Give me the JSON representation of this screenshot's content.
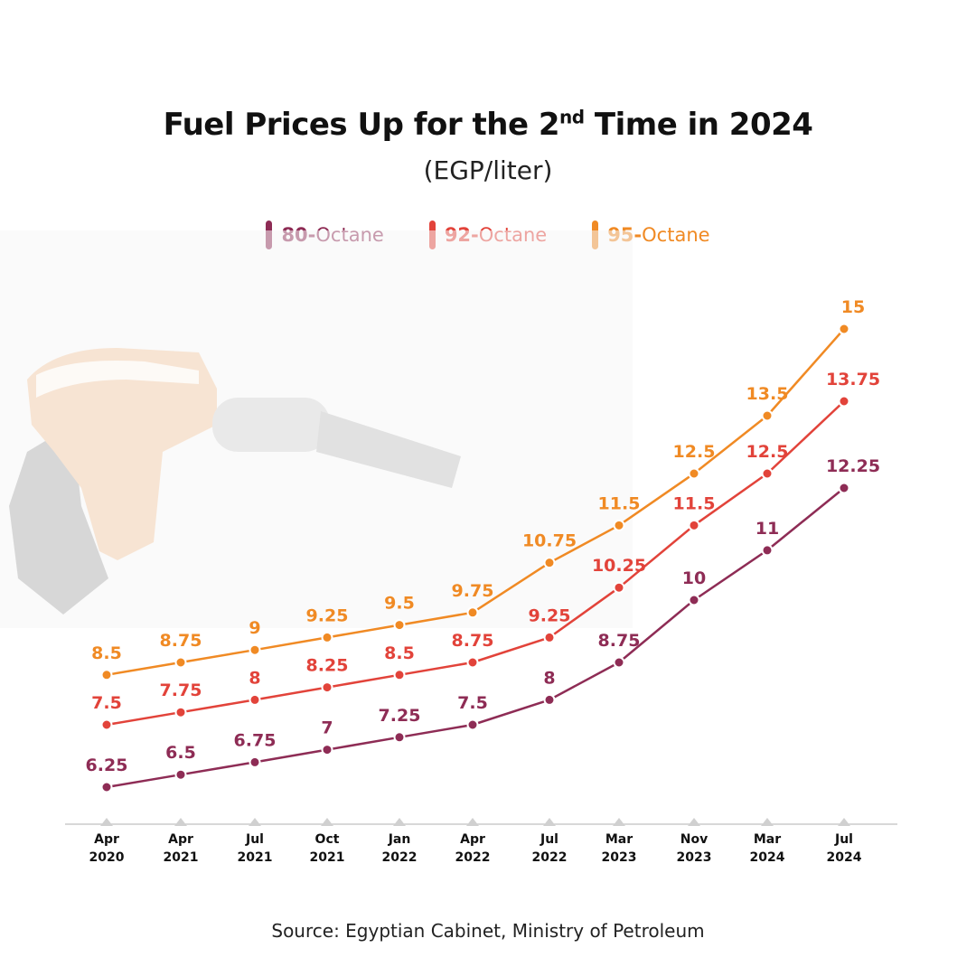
{
  "header": {
    "title_main": "Fuel Prices Up for the 2",
    "title_sup": "nd",
    "title_end": " Time in 2024",
    "subtitle": "(EGP/liter)"
  },
  "source": "Source: Egyptian Cabinet, Ministry of Petroleum",
  "legend": [
    {
      "num": "80-",
      "rest": "Octane",
      "color": "#8e2c55"
    },
    {
      "num": "92-",
      "rest": "Octane",
      "color": "#e2433a"
    },
    {
      "num": "95-",
      "rest": "Octane",
      "color": "#f08a24"
    }
  ],
  "chart_data": {
    "type": "line",
    "title": "Fuel Prices Up for the 2nd Time in 2024",
    "ylabel": "",
    "xlabel": "",
    "categories": [
      [
        "Apr",
        "2020"
      ],
      [
        "Apr",
        "2021"
      ],
      [
        "Jul",
        "2021"
      ],
      [
        "Oct",
        "2021"
      ],
      [
        "Jan",
        "2022"
      ],
      [
        "Apr",
        "2022"
      ],
      [
        "Jul",
        "2022"
      ],
      [
        "Mar",
        "2023"
      ],
      [
        "Nov",
        "2023"
      ],
      [
        "Mar",
        "2024"
      ],
      [
        "Jul",
        "2024"
      ]
    ],
    "series": [
      {
        "name": "80-Octane",
        "color": "#8e2c55",
        "values": [
          6.25,
          6.5,
          6.75,
          7,
          7.25,
          7.5,
          8,
          8.75,
          10,
          11,
          12.25
        ]
      },
      {
        "name": "92-Octane",
        "color": "#e2433a",
        "values": [
          7.5,
          7.75,
          8,
          8.25,
          8.5,
          8.75,
          9.25,
          10.25,
          11.5,
          12.5,
          13.75
        ]
      },
      {
        "name": "95-Octane",
        "color": "#f08a24",
        "values": [
          8.5,
          8.75,
          9,
          9.25,
          9.5,
          9.75,
          10.75,
          11.5,
          12.5,
          13.5,
          15
        ]
      }
    ],
    "grid": false,
    "legend_position": "top-center"
  }
}
